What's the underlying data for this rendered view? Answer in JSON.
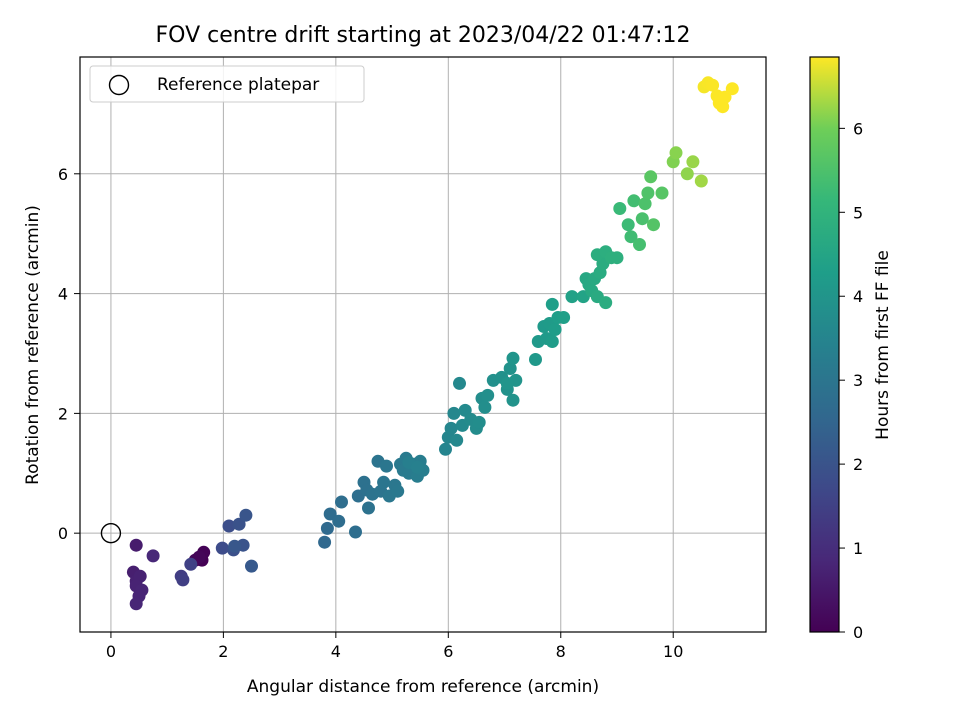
{
  "chart_data": {
    "type": "scatter",
    "title": "FOV centre drift starting at 2023/04/22 01:47:12",
    "xlabel": "Angular distance from reference (arcmin)",
    "ylabel": "Rotation from reference (arcmin)",
    "xlim": [
      -0.55,
      11.65
    ],
    "ylim": [
      -1.65,
      7.95
    ],
    "xticks": [
      0,
      2,
      4,
      6,
      8,
      10
    ],
    "yticks": [
      0,
      2,
      4,
      6
    ],
    "grid": true,
    "legend": {
      "position": "top-left",
      "entries": [
        "Reference platepar"
      ]
    },
    "reference_point": {
      "x": 0,
      "y": 0
    },
    "colorbar": {
      "label": "Hours from first FF file",
      "range": [
        0,
        6.85
      ],
      "ticks": [
        0,
        1,
        2,
        3,
        4,
        5,
        6
      ],
      "colormap": "viridis"
    },
    "points": [
      {
        "x": 1.62,
        "y": -0.45,
        "t": 0.0
      },
      {
        "x": 1.65,
        "y": -0.32,
        "t": 0.05
      },
      {
        "x": 1.5,
        "y": -0.45,
        "t": 0.08
      },
      {
        "x": 1.57,
        "y": -0.4,
        "t": 0.1
      },
      {
        "x": 0.45,
        "y": -0.2,
        "t": 0.6
      },
      {
        "x": 0.4,
        "y": -0.65,
        "t": 0.65
      },
      {
        "x": 0.45,
        "y": -0.8,
        "t": 0.7
      },
      {
        "x": 0.52,
        "y": -0.72,
        "t": 0.72
      },
      {
        "x": 0.45,
        "y": -0.88,
        "t": 0.75
      },
      {
        "x": 0.55,
        "y": -0.95,
        "t": 0.78
      },
      {
        "x": 0.5,
        "y": -1.05,
        "t": 0.8
      },
      {
        "x": 0.45,
        "y": -1.18,
        "t": 0.82
      },
      {
        "x": 0.75,
        "y": -0.38,
        "t": 0.85
      },
      {
        "x": 1.25,
        "y": -0.72,
        "t": 1.4
      },
      {
        "x": 1.28,
        "y": -0.78,
        "t": 1.45
      },
      {
        "x": 1.42,
        "y": -0.52,
        "t": 1.5
      },
      {
        "x": 1.98,
        "y": -0.25,
        "t": 1.8
      },
      {
        "x": 2.1,
        "y": 0.12,
        "t": 1.85
      },
      {
        "x": 2.18,
        "y": -0.28,
        "t": 1.9
      },
      {
        "x": 2.28,
        "y": 0.15,
        "t": 1.95
      },
      {
        "x": 2.35,
        "y": -0.2,
        "t": 2.0
      },
      {
        "x": 2.4,
        "y": 0.3,
        "t": 2.05
      },
      {
        "x": 2.2,
        "y": -0.22,
        "t": 2.1
      },
      {
        "x": 2.5,
        "y": -0.55,
        "t": 2.15
      },
      {
        "x": 3.8,
        "y": -0.15,
        "t": 2.6
      },
      {
        "x": 3.85,
        "y": 0.08,
        "t": 2.65
      },
      {
        "x": 3.9,
        "y": 0.32,
        "t": 2.7
      },
      {
        "x": 4.05,
        "y": 0.2,
        "t": 2.72
      },
      {
        "x": 4.1,
        "y": 0.52,
        "t": 2.75
      },
      {
        "x": 4.35,
        "y": 0.02,
        "t": 2.78
      },
      {
        "x": 4.4,
        "y": 0.62,
        "t": 2.8
      },
      {
        "x": 4.5,
        "y": 0.85,
        "t": 2.85
      },
      {
        "x": 4.55,
        "y": 0.72,
        "t": 2.88
      },
      {
        "x": 4.58,
        "y": 0.42,
        "t": 2.9
      },
      {
        "x": 4.65,
        "y": 0.65,
        "t": 2.92
      },
      {
        "x": 4.75,
        "y": 1.2,
        "t": 2.95
      },
      {
        "x": 4.8,
        "y": 0.7,
        "t": 2.97
      },
      {
        "x": 4.85,
        "y": 0.85,
        "t": 3.0
      },
      {
        "x": 4.9,
        "y": 1.12,
        "t": 3.02
      },
      {
        "x": 4.95,
        "y": 0.62,
        "t": 3.05
      },
      {
        "x": 5.05,
        "y": 0.8,
        "t": 3.07
      },
      {
        "x": 5.1,
        "y": 0.7,
        "t": 3.1
      },
      {
        "x": 5.15,
        "y": 1.15,
        "t": 3.12
      },
      {
        "x": 5.2,
        "y": 1.05,
        "t": 3.15
      },
      {
        "x": 5.25,
        "y": 1.25,
        "t": 3.17
      },
      {
        "x": 5.3,
        "y": 1.0,
        "t": 3.2
      },
      {
        "x": 5.4,
        "y": 1.15,
        "t": 3.22
      },
      {
        "x": 5.45,
        "y": 0.95,
        "t": 3.25
      },
      {
        "x": 5.5,
        "y": 1.2,
        "t": 3.27
      },
      {
        "x": 5.55,
        "y": 1.05,
        "t": 3.3
      },
      {
        "x": 5.3,
        "y": 1.18,
        "t": 3.32
      },
      {
        "x": 5.45,
        "y": 1.1,
        "t": 3.35
      },
      {
        "x": 5.95,
        "y": 1.4,
        "t": 3.5
      },
      {
        "x": 6.0,
        "y": 1.6,
        "t": 3.52
      },
      {
        "x": 6.05,
        "y": 1.75,
        "t": 3.55
      },
      {
        "x": 6.1,
        "y": 2.0,
        "t": 3.57
      },
      {
        "x": 6.15,
        "y": 1.55,
        "t": 3.6
      },
      {
        "x": 6.2,
        "y": 2.5,
        "t": 3.62
      },
      {
        "x": 6.25,
        "y": 1.8,
        "t": 3.65
      },
      {
        "x": 6.3,
        "y": 2.05,
        "t": 3.67
      },
      {
        "x": 6.4,
        "y": 1.9,
        "t": 3.7
      },
      {
        "x": 6.5,
        "y": 1.75,
        "t": 3.72
      },
      {
        "x": 6.55,
        "y": 1.85,
        "t": 3.75
      },
      {
        "x": 6.6,
        "y": 2.25,
        "t": 3.77
      },
      {
        "x": 6.65,
        "y": 2.1,
        "t": 3.8
      },
      {
        "x": 6.7,
        "y": 2.3,
        "t": 3.82
      },
      {
        "x": 6.8,
        "y": 2.55,
        "t": 3.85
      },
      {
        "x": 6.95,
        "y": 2.6,
        "t": 3.87
      },
      {
        "x": 7.05,
        "y": 2.4,
        "t": 3.9
      },
      {
        "x": 7.1,
        "y": 2.75,
        "t": 3.92
      },
      {
        "x": 7.15,
        "y": 2.22,
        "t": 3.95
      },
      {
        "x": 7.2,
        "y": 2.55,
        "t": 3.97
      },
      {
        "x": 7.15,
        "y": 2.92,
        "t": 4.0
      },
      {
        "x": 7.05,
        "y": 2.5,
        "t": 4.02
      },
      {
        "x": 7.55,
        "y": 2.9,
        "t": 4.1
      },
      {
        "x": 7.6,
        "y": 3.2,
        "t": 4.12
      },
      {
        "x": 7.7,
        "y": 3.45,
        "t": 4.15
      },
      {
        "x": 7.75,
        "y": 3.25,
        "t": 4.17
      },
      {
        "x": 7.8,
        "y": 3.5,
        "t": 4.2
      },
      {
        "x": 7.85,
        "y": 3.2,
        "t": 4.22
      },
      {
        "x": 7.9,
        "y": 3.4,
        "t": 4.25
      },
      {
        "x": 7.95,
        "y": 3.6,
        "t": 4.27
      },
      {
        "x": 7.85,
        "y": 3.82,
        "t": 4.3
      },
      {
        "x": 8.05,
        "y": 3.6,
        "t": 4.32
      },
      {
        "x": 8.2,
        "y": 3.95,
        "t": 4.4
      },
      {
        "x": 8.4,
        "y": 3.95,
        "t": 4.45
      },
      {
        "x": 8.45,
        "y": 4.25,
        "t": 4.6
      },
      {
        "x": 8.5,
        "y": 4.15,
        "t": 4.62
      },
      {
        "x": 8.55,
        "y": 4.05,
        "t": 4.65
      },
      {
        "x": 8.6,
        "y": 4.25,
        "t": 4.67
      },
      {
        "x": 8.65,
        "y": 3.95,
        "t": 4.7
      },
      {
        "x": 8.7,
        "y": 4.35,
        "t": 4.72
      },
      {
        "x": 8.75,
        "y": 4.5,
        "t": 4.75
      },
      {
        "x": 8.8,
        "y": 3.85,
        "t": 4.77
      },
      {
        "x": 8.65,
        "y": 4.65,
        "t": 4.8
      },
      {
        "x": 8.8,
        "y": 4.7,
        "t": 4.82
      },
      {
        "x": 8.9,
        "y": 4.6,
        "t": 4.85
      },
      {
        "x": 9.0,
        "y": 4.6,
        "t": 4.87
      },
      {
        "x": 9.05,
        "y": 5.42,
        "t": 5.2
      },
      {
        "x": 9.2,
        "y": 5.15,
        "t": 5.25
      },
      {
        "x": 9.25,
        "y": 4.95,
        "t": 5.3
      },
      {
        "x": 9.3,
        "y": 5.55,
        "t": 5.35
      },
      {
        "x": 9.4,
        "y": 4.82,
        "t": 5.4
      },
      {
        "x": 9.45,
        "y": 5.25,
        "t": 5.45
      },
      {
        "x": 9.5,
        "y": 5.5,
        "t": 5.5
      },
      {
        "x": 9.55,
        "y": 5.68,
        "t": 5.55
      },
      {
        "x": 9.65,
        "y": 5.15,
        "t": 5.6
      },
      {
        "x": 9.8,
        "y": 5.68,
        "t": 5.65
      },
      {
        "x": 9.6,
        "y": 5.95,
        "t": 5.7
      },
      {
        "x": 10.0,
        "y": 6.2,
        "t": 6.1
      },
      {
        "x": 10.05,
        "y": 6.35,
        "t": 6.15
      },
      {
        "x": 10.25,
        "y": 6.0,
        "t": 6.2
      },
      {
        "x": 10.35,
        "y": 6.2,
        "t": 6.25
      },
      {
        "x": 10.5,
        "y": 5.88,
        "t": 6.3
      },
      {
        "x": 10.55,
        "y": 7.45,
        "t": 6.8
      },
      {
        "x": 10.62,
        "y": 7.52,
        "t": 6.82
      },
      {
        "x": 10.7,
        "y": 7.48,
        "t": 6.83
      },
      {
        "x": 10.78,
        "y": 7.3,
        "t": 6.84
      },
      {
        "x": 10.82,
        "y": 7.18,
        "t": 6.85
      },
      {
        "x": 10.88,
        "y": 7.12,
        "t": 6.85
      },
      {
        "x": 10.92,
        "y": 7.28,
        "t": 6.85
      },
      {
        "x": 11.05,
        "y": 7.42,
        "t": 6.85
      }
    ]
  }
}
